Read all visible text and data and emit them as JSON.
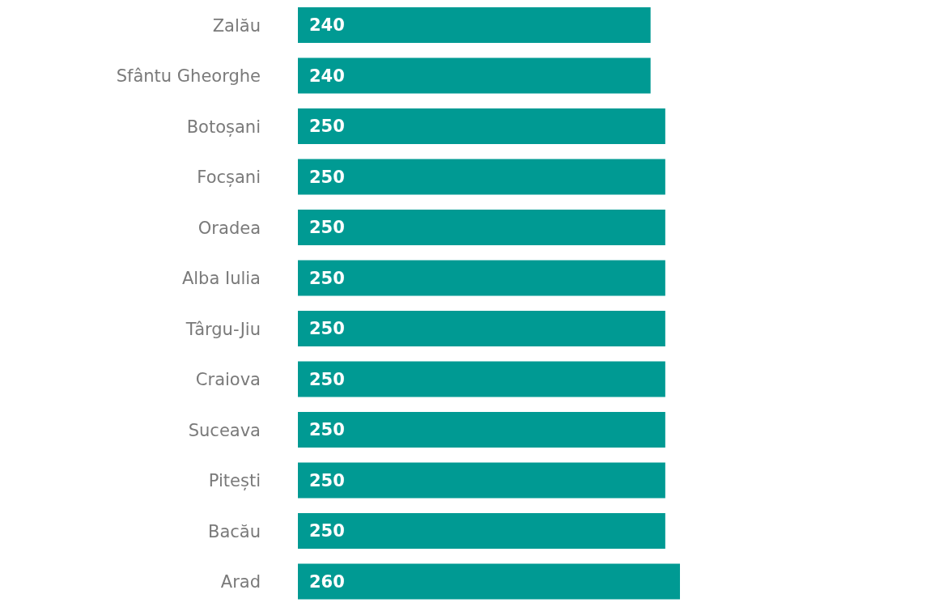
{
  "chart_data": {
    "type": "bar",
    "orientation": "horizontal",
    "categories": [
      "Zalău",
      "Sfântu Gheorghe",
      "Botoșani",
      "Focșani",
      "Oradea",
      "Alba Iulia",
      "Târgu-Jiu",
      "Craiova",
      "Suceava",
      "Pitești",
      "Bacău",
      "Arad"
    ],
    "values": [
      240,
      240,
      250,
      250,
      250,
      250,
      250,
      250,
      250,
      250,
      250,
      260
    ],
    "color": "#009a93",
    "data_labels": true,
    "grid": false,
    "legend": false
  }
}
